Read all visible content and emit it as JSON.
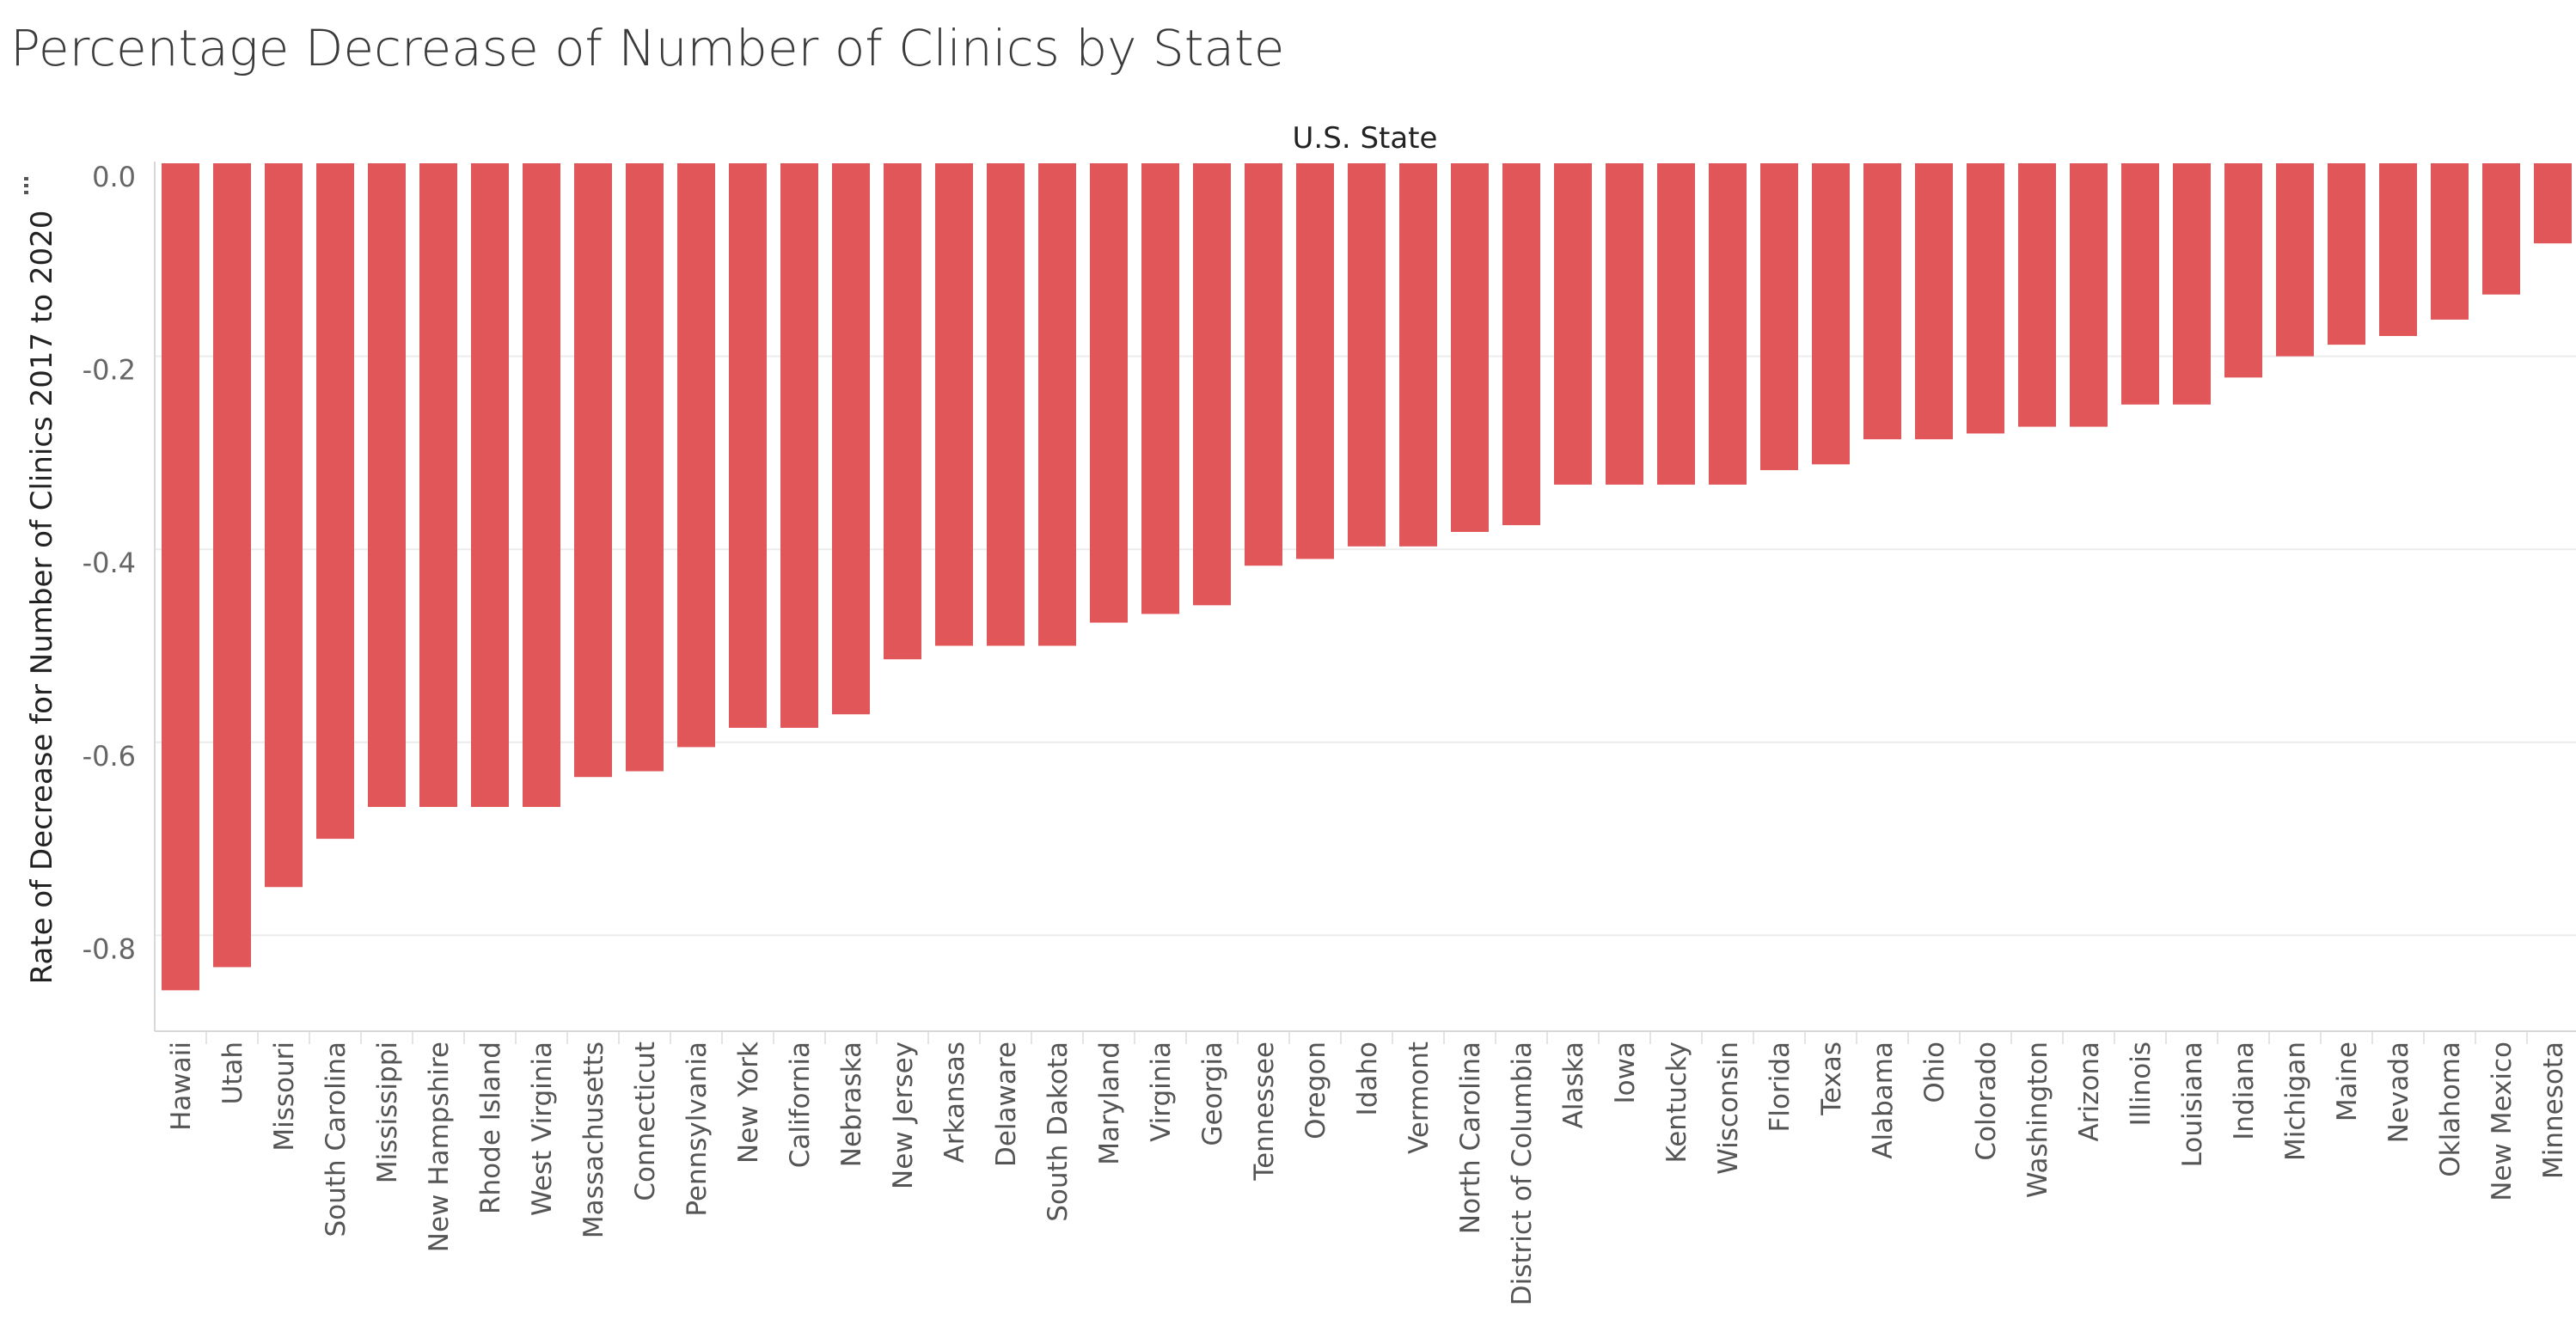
{
  "chart_data": {
    "type": "bar",
    "title": "Percentage Decrease of Number of Clinics by State",
    "xlabel": "U.S. State",
    "ylabel": "Rate of Decrease for Number of Clinics 2017 to 2020",
    "ylim": [
      -0.9,
      0.0
    ],
    "yticks": [
      "0.0",
      "-0.2",
      "-0.4",
      "-0.6",
      "-0.8"
    ],
    "grid": true,
    "bar_color": "#e15759",
    "categories": [
      "Hawaii",
      "Utah",
      "Missouri",
      "South Carolina",
      "Mississippi",
      "New Hampshire",
      "Rhode Island",
      "West Virginia",
      "Massachusetts",
      "Connecticut",
      "Pennsylvania",
      "New York",
      "California",
      "Nebraska",
      "New Jersey",
      "Arkansas",
      "Delaware",
      "South Dakota",
      "Maryland",
      "Virginia",
      "Georgia",
      "Tennessee",
      "Oregon",
      "Idaho",
      "Vermont",
      "North Carolina",
      "District of Columbia",
      "Alaska",
      "Iowa",
      "Kentucky",
      "Wisconsin",
      "Florida",
      "Texas",
      "Alabama",
      "Ohio",
      "Colorado",
      "Washington",
      "Arizona",
      "Illinois",
      "Louisiana",
      "Indiana",
      "Michigan",
      "Maine",
      "Nevada",
      "Oklahoma",
      "New Mexico",
      "Minnesota"
    ],
    "values": [
      -0.857,
      -0.833,
      -0.75,
      -0.7,
      -0.667,
      -0.667,
      -0.667,
      -0.667,
      -0.636,
      -0.63,
      -0.605,
      -0.585,
      -0.585,
      -0.571,
      -0.514,
      -0.5,
      -0.5,
      -0.5,
      -0.476,
      -0.467,
      -0.458,
      -0.417,
      -0.41,
      -0.397,
      -0.397,
      -0.382,
      -0.375,
      -0.333,
      -0.333,
      -0.333,
      -0.333,
      -0.318,
      -0.312,
      -0.286,
      -0.286,
      -0.28,
      -0.273,
      -0.273,
      -0.25,
      -0.25,
      -0.222,
      -0.2,
      -0.188,
      -0.179,
      -0.162,
      -0.136,
      -0.083
    ]
  }
}
